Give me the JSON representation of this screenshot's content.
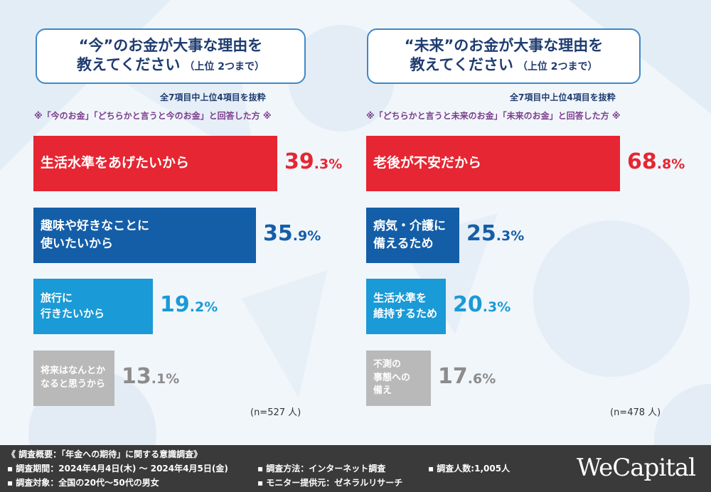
{
  "chart_data": [
    {
      "type": "bar",
      "orientation": "horizontal",
      "title_line1": "“今”のお金が大事な理由を",
      "title_line2": "教えてください",
      "title_sub": "（上位 2つまで）",
      "source_note": "全7項目中上位4項目を抜粋",
      "respondent_note": "※「今のお金」「どちらかと言うと今のお金」と回答した方 ※",
      "n_note": "(n=527 人)",
      "value_suffix": "%",
      "categories": [
        [
          "生活水準をあげたいから"
        ],
        [
          "趣味や好きなことに",
          "使いたいから"
        ],
        [
          "旅行に",
          "行きたいから"
        ],
        [
          "将来はなんとか",
          "なると思うから"
        ]
      ],
      "values": [
        39.3,
        35.9,
        19.2,
        13.1
      ],
      "colors": [
        "#e62632",
        "#145ea8",
        "#1a9ad6",
        "#b9b9b9"
      ]
    },
    {
      "type": "bar",
      "orientation": "horizontal",
      "title_line1": "“未来”のお金が大事な理由を",
      "title_line2": "教えてください",
      "title_sub": "（上位 2つまで）",
      "source_note": "全7項目中上位4項目を抜粋",
      "respondent_note": "※「どちらかと言うと未来のお金」「未来のお金」と回答した方 ※",
      "n_note": "(n=478 人)",
      "value_suffix": "%",
      "categories": [
        [
          "老後が不安だから"
        ],
        [
          "病気・介護に",
          "備えるため"
        ],
        [
          "生活水準を",
          "維持するため"
        ],
        [
          "不測の",
          "事態への",
          "備え"
        ]
      ],
      "values": [
        68.8,
        25.3,
        20.3,
        17.6
      ],
      "colors": [
        "#e62632",
        "#145ea8",
        "#1a9ad6",
        "#b9b9b9"
      ]
    }
  ],
  "footer": {
    "overview": "《 調査概要：「年金への期待」に関する意識調査》",
    "period": "▪ 調査期間：2024年4月4日(木) 〜 2024年4月5日(金)",
    "target": "▪ 調査対象：全国の20代〜50代の男女",
    "method": "▪ 調査方法：インターネット調査",
    "provider": "▪ モニター提供元：ゼネラルリサーチ",
    "count": "▪ 調査人数:1,005人",
    "brand": "WeCapital"
  }
}
